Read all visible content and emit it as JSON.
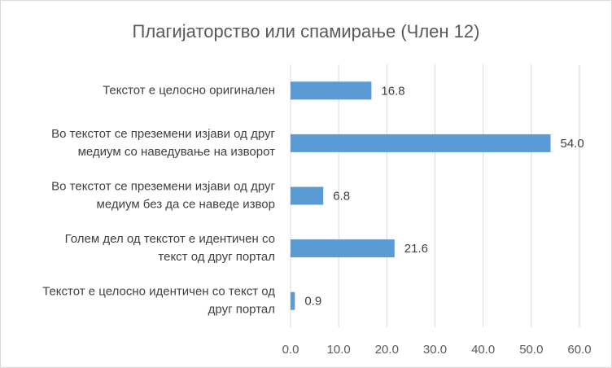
{
  "chart_data": {
    "type": "barh",
    "title": "Плагијаторство или спамирање (Член 12)",
    "categories": [
      "Текстот е целосно оригинален",
      "Во текстот се преземени изјави од друг\nмедиум со наведување на изворот",
      "Во текстот се преземени изјави од друг\nмедиум без да се наведе извор",
      "Голем дел од текстот е идентичен со\nтекст од друг портал",
      "Текстот е целосно идентичен со текст од\nдруг портал"
    ],
    "values": [
      16.8,
      54.0,
      6.8,
      21.6,
      0.9
    ],
    "value_labels": [
      "16.8",
      "54.0",
      "6.8",
      "21.6",
      "0.9"
    ],
    "color": "#5b9bd5",
    "xlim": [
      0,
      60
    ],
    "xticks": [
      {
        "value": 0,
        "label": "0.0"
      },
      {
        "value": 10,
        "label": "10.0"
      },
      {
        "value": 20,
        "label": "20.0"
      },
      {
        "value": 30,
        "label": "30.0"
      },
      {
        "value": 40,
        "label": "40.0"
      },
      {
        "value": 50,
        "label": "50.0"
      },
      {
        "value": 60,
        "label": "60.0"
      }
    ],
    "grid": true
  }
}
